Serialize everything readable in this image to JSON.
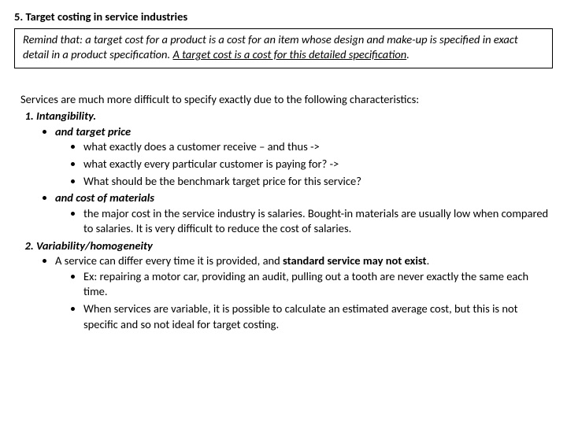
{
  "title": "5. Target costing in service industries",
  "remind": {
    "pre": "Remind that: a target cost for a product is a cost for an item whose design and make-up is specified in exact detail in a product specification. ",
    "underlined": "A target cost is a cost for this detailed specification",
    "post": "."
  },
  "intro": "Services are much more difficult to specify exactly due to the following characteristics:",
  "item1": {
    "heading": "Intangibility.",
    "sub1": "and target price",
    "sub1_a": "what exactly does a customer receive – and thus ->",
    "sub1_b": "what exactly every particular customer is paying for? ->",
    "sub1_c": "What should be the benchmark target price for this service?",
    "sub2": "and cost of materials",
    "sub2_a": "the major cost in the service industry is salaries. Bought-in materials are usually low when compared to salaries. It is very difficult to reduce the cost of salaries."
  },
  "item2": {
    "heading": "Variability/homogeneity",
    "line_pre": "A service can differ every time it is provided, and ",
    "line_bold": "standard service may not exist",
    "line_post": ".",
    "ex_a": "Ex: repairing a motor car, providing an audit, pulling out a tooth are never exactly the same each time.",
    "ex_b": "When services are variable, it is possible to calculate an estimated average cost, but this is not specific and so not ideal for target costing."
  }
}
